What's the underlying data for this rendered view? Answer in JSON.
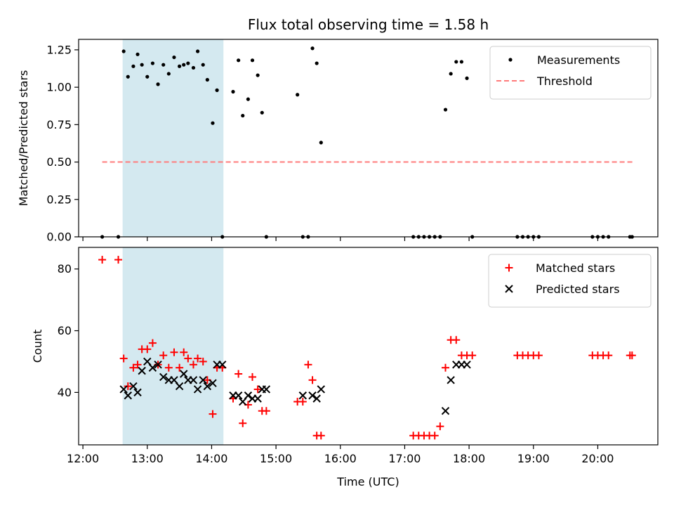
{
  "chart_data": [
    {
      "type": "scatter",
      "title": "Flux total observing time = 1.58 h",
      "ylabel": "Matched/Predicted stars",
      "xlabel": "",
      "x_unit": "time of day (HH:MM, UTC)",
      "xlim": [
        "11:56",
        "20:56"
      ],
      "ylim": [
        0,
        1.32
      ],
      "yticks": [
        0.0,
        0.25,
        0.5,
        0.75,
        1.0,
        1.25
      ],
      "ytick_labels": [
        "0.00",
        "0.25",
        "0.50",
        "0.75",
        "1.00",
        "1.25"
      ],
      "legend_position": "top-right",
      "highlight_band": {
        "x": [
          "12:37",
          "14:11"
        ],
        "color": "#d4e9f0"
      },
      "threshold": {
        "name": "Threshold",
        "y": 0.5,
        "x": [
          "12:18",
          "20:33"
        ],
        "color": "#ff7a7a",
        "style": "dashed"
      },
      "series": [
        {
          "name": "Measurements",
          "color": "#000000",
          "marker": "dot",
          "x": [
            "12:18",
            "12:33",
            "12:38",
            "12:42",
            "12:47",
            "12:51",
            "12:55",
            "13:00",
            "13:05",
            "13:10",
            "13:15",
            "13:20",
            "13:25",
            "13:30",
            "13:34",
            "13:38",
            "13:43",
            "13:47",
            "13:52",
            "13:56",
            "14:01",
            "14:05",
            "14:10",
            "14:20",
            "14:25",
            "14:29",
            "14:34",
            "14:38",
            "14:43",
            "14:47",
            "14:51",
            "15:20",
            "15:25",
            "15:30",
            "15:34",
            "15:38",
            "15:42",
            "17:08",
            "17:13",
            "17:18",
            "17:23",
            "17:28",
            "17:33",
            "17:38",
            "17:43",
            "17:48",
            "17:53",
            "17:58",
            "18:03",
            "18:45",
            "18:50",
            "18:55",
            "19:00",
            "19:05",
            "19:55",
            "20:00",
            "20:05",
            "20:10",
            "20:30",
            "20:32"
          ],
          "y": [
            0,
            0,
            1.24,
            1.07,
            1.14,
            1.22,
            1.15,
            1.07,
            1.16,
            1.02,
            1.15,
            1.09,
            1.2,
            1.14,
            1.15,
            1.16,
            1.13,
            1.24,
            1.15,
            1.05,
            0.76,
            0.98,
            0,
            0.97,
            1.18,
            0.81,
            0.92,
            1.18,
            1.08,
            0.83,
            0,
            0.95,
            0,
            0,
            1.26,
            1.16,
            0.63,
            0,
            0,
            0,
            0,
            0,
            0,
            0.85,
            1.09,
            1.17,
            1.17,
            1.06,
            0,
            0,
            0,
            0,
            0,
            0,
            0,
            0,
            0,
            0,
            0,
            0
          ]
        }
      ]
    },
    {
      "type": "scatter",
      "title": "",
      "ylabel": "Count",
      "xlabel": "Time (UTC)",
      "x_unit": "time of day (HH:MM, UTC)",
      "xlim": [
        "11:56",
        "20:56"
      ],
      "ylim": [
        23,
        87
      ],
      "yticks": [
        40,
        60,
        80
      ],
      "ytick_labels": [
        "40",
        "60",
        "80"
      ],
      "xticks": [
        "12:00",
        "13:00",
        "14:00",
        "15:00",
        "16:00",
        "17:00",
        "18:00",
        "19:00",
        "20:00"
      ],
      "xtick_labels": [
        "12:00",
        "13:00",
        "14:00",
        "15:00",
        "16:00",
        "17:00",
        "18:00",
        "19:00",
        "20:00"
      ],
      "legend_position": "top-right",
      "highlight_band": {
        "x": [
          "12:37",
          "14:11"
        ],
        "color": "#d4e9f0"
      },
      "series": [
        {
          "name": "Matched stars",
          "color": "#ff0000",
          "marker": "plus",
          "x": [
            "12:18",
            "12:33",
            "12:38",
            "12:42",
            "12:47",
            "12:51",
            "12:55",
            "13:00",
            "13:05",
            "13:10",
            "13:15",
            "13:20",
            "13:25",
            "13:30",
            "13:34",
            "13:38",
            "13:43",
            "13:47",
            "13:52",
            "13:56",
            "14:01",
            "14:05",
            "14:10",
            "14:20",
            "14:25",
            "14:29",
            "14:34",
            "14:38",
            "14:43",
            "14:47",
            "14:51",
            "15:20",
            "15:25",
            "15:30",
            "15:34",
            "15:38",
            "15:42",
            "17:08",
            "17:13",
            "17:18",
            "17:23",
            "17:28",
            "17:33",
            "17:38",
            "17:43",
            "17:48",
            "17:53",
            "17:58",
            "18:03",
            "18:45",
            "18:50",
            "18:55",
            "19:00",
            "19:05",
            "19:55",
            "20:00",
            "20:05",
            "20:10",
            "20:30",
            "20:32"
          ],
          "y": [
            83,
            83,
            51,
            42,
            48,
            49,
            54,
            54,
            56,
            49,
            52,
            48,
            53,
            48,
            53,
            51,
            49,
            51,
            50,
            44,
            33,
            48,
            48,
            38,
            46,
            30,
            36,
            45,
            41,
            34,
            34,
            37,
            37,
            49,
            44,
            26,
            26,
            26,
            26,
            26,
            26,
            26,
            29,
            48,
            57,
            57,
            52,
            52,
            52,
            52,
            52,
            52,
            52,
            52,
            52,
            52,
            52,
            52,
            52,
            52
          ]
        },
        {
          "name": "Predicted stars",
          "color": "#000000",
          "marker": "x",
          "x": [
            "12:38",
            "12:42",
            "12:47",
            "12:51",
            "12:55",
            "13:00",
            "13:05",
            "13:10",
            "13:15",
            "13:20",
            "13:25",
            "13:30",
            "13:34",
            "13:38",
            "13:43",
            "13:47",
            "13:52",
            "13:56",
            "14:01",
            "14:05",
            "14:10",
            "14:20",
            "14:25",
            "14:29",
            "14:34",
            "14:38",
            "14:43",
            "14:47",
            "14:51",
            "15:25",
            "15:34",
            "15:38",
            "15:42",
            "17:38",
            "17:43",
            "17:48",
            "17:53",
            "17:58"
          ],
          "y": [
            41,
            39,
            42,
            40,
            47,
            50,
            48,
            49,
            45,
            44,
            44,
            42,
            46,
            44,
            44,
            41,
            44,
            42,
            43,
            49,
            49,
            39,
            39,
            37,
            39,
            38,
            38,
            41,
            41,
            39,
            39,
            38,
            41,
            34,
            44,
            49,
            49,
            49
          ]
        }
      ]
    }
  ]
}
